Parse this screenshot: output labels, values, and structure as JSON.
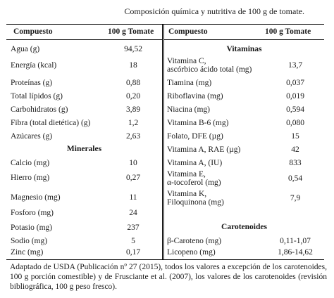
{
  "title": "Composición química y nutritiva de 100 g de tomate.",
  "headers": {
    "left_compound": "Compuesto",
    "left_value": "100 g Tomate",
    "right_compound": "Compuesto",
    "right_value": "100 g Tomate"
  },
  "left_rows": [
    {
      "label": "Agua (g)",
      "value": "94,52"
    },
    {
      "label": "Energía (kcal)",
      "value": "18"
    },
    {
      "label": "Proteínas (g)",
      "value": "0,88"
    },
    {
      "label": "Total lípidos (g)",
      "value": "0,20"
    },
    {
      "label": "Carbohidratos (g)",
      "value": "3,89"
    },
    {
      "label": "Fibra (total dietética) (g)",
      "value": "1,2"
    },
    {
      "label": "Azúcares (g)",
      "value": "2,63"
    }
  ],
  "left_section": "Minerales",
  "left_rows2": [
    {
      "label": "Calcio (mg)",
      "value": "10"
    },
    {
      "label": "Hierro (mg)",
      "value": "0,27"
    },
    {
      "label": "Magnesio (mg)",
      "value": "11"
    },
    {
      "label": "Fosforo (mg)",
      "value": "24"
    },
    {
      "label": "Potasio (mg)",
      "value": "237"
    },
    {
      "label": "Sodio (mg)",
      "value": "5"
    },
    {
      "label": "Zinc (mg)",
      "value": "0,17"
    }
  ],
  "right_section1": "Vitaminas",
  "right_rows": [
    {
      "label1": "Vitamina C,",
      "label2": "ascórbico ácido total (mg)",
      "value": "13,7"
    },
    {
      "label1": "Tiamina (mg)",
      "label2": "",
      "value": "0,037"
    },
    {
      "label1": "Riboflavina (mg)",
      "label2": "",
      "value": "0,019"
    },
    {
      "label1": "Niacina (mg)",
      "label2": "",
      "value": "0,594"
    },
    {
      "label1": "Vitamina B-6 (mg)",
      "label2": "",
      "value": "0,080"
    },
    {
      "label1": "Folato, DFE (µg)",
      "label2": "",
      "value": "15"
    },
    {
      "label1": "Vitamina A, RAE (µg)",
      "label2": "",
      "value": "42"
    },
    {
      "label1": "Vitamina A, (IU)",
      "label2": "",
      "value": "833"
    },
    {
      "label1": "Vitamina E,",
      "label2": "α-tocoferol (mg)",
      "value": "0,54"
    },
    {
      "label1": "Vitamina K,",
      "label2": "Filoquinona (mg)",
      "value": "7,9"
    }
  ],
  "right_section2": "Carotenoides",
  "right_rows2": [
    {
      "label": "β-Caroteno (mg)",
      "value": "0,11-1,07"
    },
    {
      "label": "Licopeno (mg)",
      "value": "1,86-14,62"
    }
  ],
  "footnote": "Adaptado de USDA (Publicación nº 27 (2015), todos los valores a excepción de los carotenoides, 100 g porción comestible) y de Frusciante et al. (2007), los valores de los carotenoides (revisión bibliográfica, 100 g peso fresco)."
}
